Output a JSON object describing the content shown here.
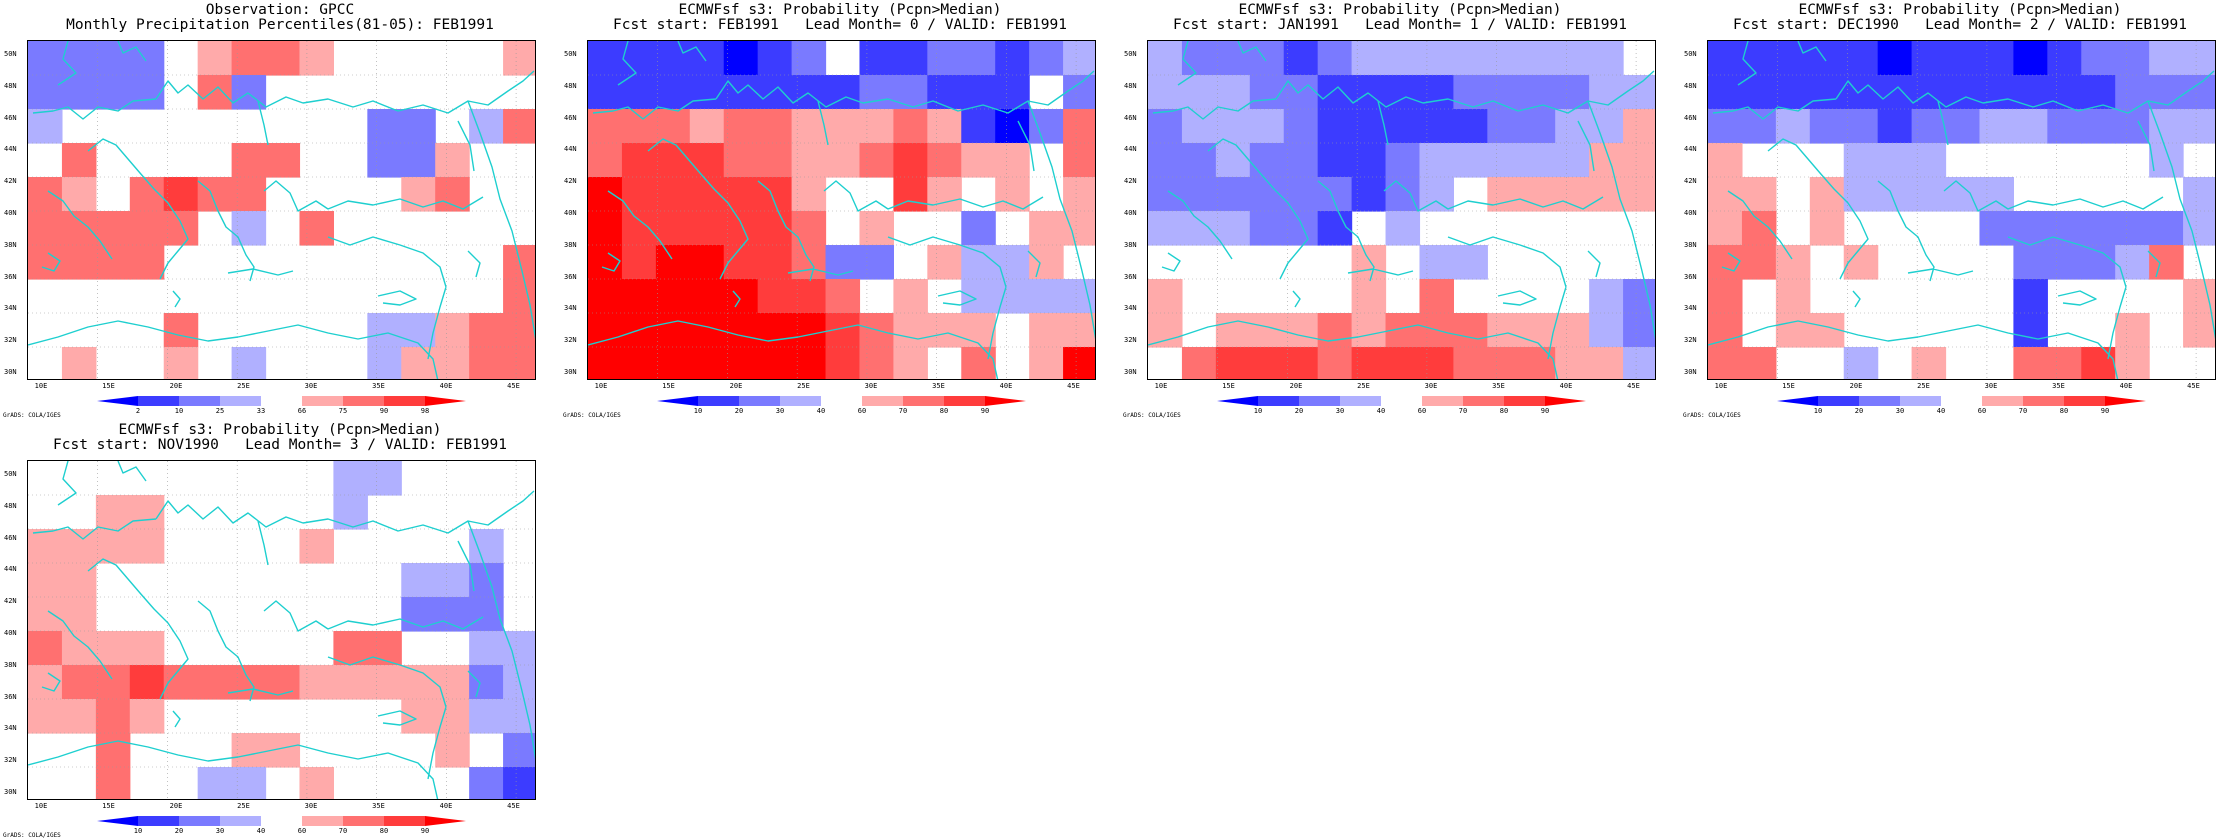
{
  "panels": [
    {
      "id": "obs",
      "title_line1": "Observation: GPCC",
      "title_line2": "Monthly Precipitation Percentiles(81-05): FEB1991",
      "colorbar_labels": [
        "2",
        "10",
        "25",
        "33",
        "66",
        "75",
        "90",
        "98"
      ]
    },
    {
      "id": "lead0",
      "title_line1": "ECMWFsf s3: Probability (Pcpn>Median)",
      "title_line2": "Fcst start: FEB1991   Lead Month= 0 / VALID: FEB1991",
      "colorbar_labels": [
        "10",
        "20",
        "30",
        "40",
        "60",
        "70",
        "80",
        "90"
      ]
    },
    {
      "id": "lead1",
      "title_line1": "ECMWFsf s3: Probability (Pcpn>Median)",
      "title_line2": "Fcst start: JAN1991   Lead Month= 1 / VALID: FEB1991",
      "colorbar_labels": [
        "10",
        "20",
        "30",
        "40",
        "60",
        "70",
        "80",
        "90"
      ]
    },
    {
      "id": "lead2",
      "title_line1": "ECMWFsf s3: Probability (Pcpn>Median)",
      "title_line2": "Fcst start: DEC1990   Lead Month= 2 / VALID: FEB1991",
      "colorbar_labels": [
        "10",
        "20",
        "30",
        "40",
        "60",
        "70",
        "80",
        "90"
      ]
    },
    {
      "id": "lead3",
      "title_line1": "ECMWFsf s3: Probability (Pcpn>Median)",
      "title_line2": "Fcst start: NOV1990   Lead Month= 3 / VALID: FEB1991",
      "colorbar_labels": [
        "10",
        "20",
        "30",
        "40",
        "60",
        "70",
        "80",
        "90"
      ]
    }
  ],
  "map_axes": {
    "lat_labels": [
      "50N",
      "48N",
      "46N",
      "44N",
      "42N",
      "40N",
      "38N",
      "36N",
      "34N",
      "32N",
      "30N"
    ],
    "lon_labels": [
      "10E",
      "15E",
      "20E",
      "25E",
      "30E",
      "35E",
      "40E",
      "45E"
    ]
  },
  "credit": "GrADS: COLA/IGES",
  "colors": {
    "coast": "#1ecfcf",
    "frame": "#000000",
    "scale": [
      "#0000ff",
      "#3c3cff",
      "#7a7aff",
      "#b0b0ff",
      "#ffffff",
      "#ffaaaa",
      "#ff7070",
      "#ff3c3c",
      "#ff0000"
    ]
  },
  "map_grids": [
    [
      "-2 -2 -2 -2 0 1 2 2 1 0 0 0 0 0 1",
      "-2 -2 -2 -2 0 2 -2 0 0 0 0 0 0 0 0",
      "-1 0 0 0 0 0 0 0 0 0 -2 -2 0 -1 2",
      "0 2 0 0 0 0 2 2 0 0 -2 -2 1 0 0",
      "2 1 0 2 3 2 2 0 0 0 0 1 2 0 0",
      "2 2 2 2 2 0 -1 0 2 0 0 0 0 0 0",
      "2 2 2 2 0 0 0 0 0 0 0 0 0 0 2",
      "0 0 0 0 0 0 0 0 0 0 0 0 0 0 2",
      "0 0 0 0 2 0 0 0 0 0 -1 -1 1 2 2",
      "0 1 0 0 1 0 -1 0 0 0 -1 1 1 2 2"
    ],
    [
      "-3 -3 -3 -3 -4 -3 -2 0 -3 -3 -2 -2 -3 -2 -1",
      "-3 -3 -3 -3 -3 -3 -3 -3 -2 -2 -3 -3 -3 0 -2",
      "2 2 2 1 2 2 1 1 1 2 1 -3 -4 -2 2",
      "2 3 3 3 2 2 1 1 2 3 2 1 1 0 2",
      "4 3 3 3 3 3 1 0 0 3 1 0 1 0 1",
      "4 3 3 3 3 3 2 0 1 0 0 -2 0 1 1",
      "4 3 4 4 3 3 2 -2 -2 0 1 -1 -1 1 0",
      "4 4 4 4 4 3 3 2 0 1 0 -1 -1 -1 -1",
      "4 4 4 4 4 4 4 3 2 1 1 1 0 1 1",
      "4 4 4 4 4 4 4 3 2 1 0 2 0 1 4"
    ],
    [
      "-1 -2 -2 -2 -3 -2 -1 -1 -1 -1 -1 -1 -1 -1 0",
      "-1 -1 -1 -2 -2 -3 -3 -3 -3 -2 -2 -2 -2 -1 -1",
      "-2 -1 -1 -1 -2 -3 -3 -3 -3 -3 -2 -2 -1 -1 1",
      "-2 -2 -1 -2 -2 -3 -3 -2 -1 -1 -1 -1 -1 1 1",
      "-2 -2 -2 -2 -2 -2 -3 -2 -1 0 1 1 1 1 1",
      "-1 -1 -1 -2 -2 -3 0 -1 0 0 0 0 0 0 0",
      "0 0 0 0 0 0 1 0 -1 -1 0 0 0 0 0",
      "1 0 0 0 0 0 1 0 2 0 0 0 0 -1 -2",
      "1 0 1 1 1 2 1 2 2 2 1 1 1 -1 -2",
      "0 2 3 3 3 2 3 3 3 2 2 2 1 1 -1"
    ],
    [
      "-3 -3 -3 -3 -3 -4 -3 -3 -3 -4 -3 -2 -2 -1 -1",
      "-3 -3 -3 -3 -3 -3 -3 -3 -3 -3 -3 -3 -2 -2 -2",
      "-2 -2 -1 -2 -2 -3 -2 -2 -1 -1 -2 -2 -2 -1 -1",
      "1 0 0 0 -1 -1 -1 0 0 0 0 0 0 -1 0",
      "1 1 0 1 -1 -1 -1 -1 -1 0 0 0 0 0 -1",
      "1 2 0 1 0 0 0 0 -2 -2 -2 -2 -2 -2 -1",
      "2 2 1 0 1 0 0 0 0 -2 -2 -2 -1 2 0",
      "2 0 1 0 0 0 0 0 0 -3 0 0 0 0 1",
      "2 0 1 1 0 0 0 0 0 -3 0 0 1 0 1",
      "2 2 0 0 -1 0 1 0 0 2 2 3 1 0 0"
    ],
    [
      "0 0 0 0 0 0 0 0 0 -1 -1 0 0 0 0",
      "0 0 1 1 0 0 0 0 0 -1 0 0 0 0 0",
      "1 1 1 1 0 0 0 0 1 0 0 0 0 -1 0",
      "1 1 0 0 0 0 0 0 0 0 0 -1 -1 -2 0",
      "1 1 0 0 0 0 0 0 0 0 0 -2 -2 -2 0",
      "2 1 1 1 0 0 0 0 0 2 2 0 0 -1 -1",
      "1 2 2 3 2 2 2 2 1 1 1 1 1 -2 -1",
      "1 1 2 1 0 0 0 0 0 0 0 1 1 -1 -1",
      "0 0 2 0 0 0 1 1 0 0 0 0 1 0 -2",
      "0 0 2 0 0 -1 -1 0 1 0 0 0 0 -2 -3"
    ]
  ]
}
